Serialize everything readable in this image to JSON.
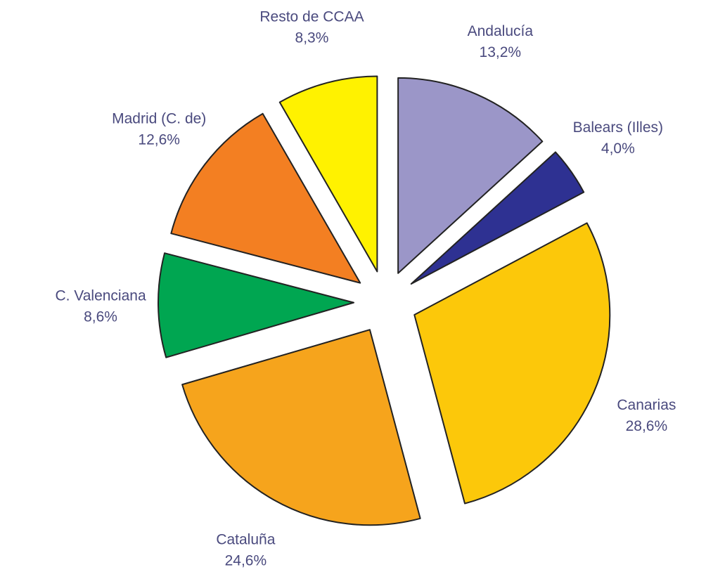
{
  "chart_data": {
    "type": "pie",
    "categories": [
      "Andalucía",
      "Balears (Illes)",
      "Canarias",
      "Cataluña",
      "C. Valenciana",
      "Madrid (C. de)",
      "Resto de CCAA"
    ],
    "values": [
      13.2,
      4.0,
      28.6,
      24.6,
      8.6,
      12.6,
      8.3
    ],
    "value_labels": [
      "13,2%",
      "4,0%",
      "28,6%",
      "24,6%",
      "8,6%",
      "12,6%",
      "8,3%"
    ],
    "colors": [
      "#9b96c8",
      "#2e3192",
      "#fcc80a",
      "#f6a41c",
      "#00a651",
      "#f37f22",
      "#fff200"
    ],
    "exploded": true
  }
}
